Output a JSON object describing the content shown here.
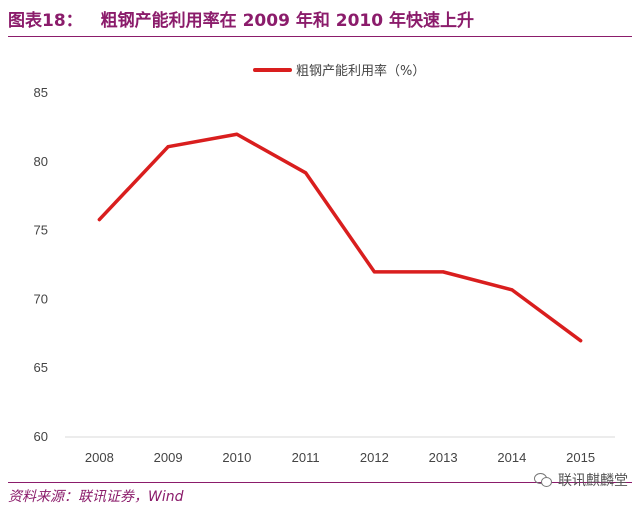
{
  "header": {
    "figure_label": "图表18：",
    "title": "粗钢产能利用率在 2009 年和 2010 年快速上升"
  },
  "footer": {
    "source": "资料来源：联讯证券，Wind"
  },
  "watermark": {
    "icon": "wechat-icon",
    "text": "联讯麒麟堂"
  },
  "colors": {
    "accent": "#8b1c6b",
    "series": "#d91e1e"
  },
  "chart_data": {
    "type": "line",
    "title": "",
    "xlabel": "",
    "ylabel": "",
    "x": [
      "2008",
      "2009",
      "2010",
      "2011",
      "2012",
      "2013",
      "2014",
      "2015"
    ],
    "ylim": [
      60,
      85
    ],
    "yticks": [
      60,
      65,
      70,
      75,
      80,
      85
    ],
    "grid": false,
    "legend_position": "top",
    "series": [
      {
        "name": "粗钢产能利用率（%）",
        "values": [
          75.8,
          81.1,
          82.0,
          79.2,
          72.0,
          72.0,
          70.7,
          67.0
        ]
      }
    ]
  }
}
